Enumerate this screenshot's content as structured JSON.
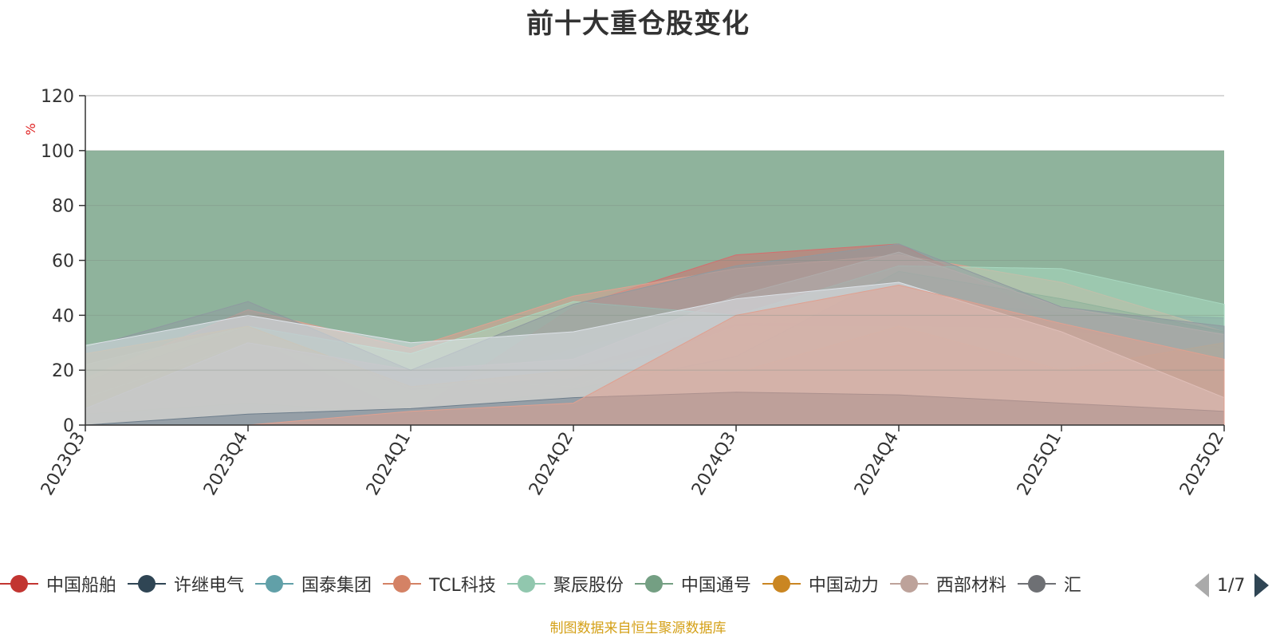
{
  "title": "前十大重仓股变化",
  "source": "制图数据来自恒生聚源数据库",
  "pager": {
    "text": "1/7",
    "prev_icon": "triangle-left-icon",
    "next_icon": "triangle-right-icon"
  },
  "legend": [
    {
      "name": "中国船舶",
      "color": "#c23531"
    },
    {
      "name": "许继电气",
      "color": "#2f4554"
    },
    {
      "name": "国泰集团",
      "color": "#61a0a8"
    },
    {
      "name": "TCL科技",
      "color": "#d48265"
    },
    {
      "name": "聚辰股份",
      "color": "#91c7ae"
    },
    {
      "name": "中国通号",
      "color": "#749f83"
    },
    {
      "name": "中国动力",
      "color": "#ca8622"
    },
    {
      "name": "西部材料",
      "color": "#bda29a"
    },
    {
      "name": "汇",
      "color": "#6e7074"
    }
  ],
  "chart_data": {
    "type": "area",
    "stacked": true,
    "title": "前十大重仓股变化",
    "ylabel": "%",
    "ylim": [
      0,
      120
    ],
    "yticks": [
      0,
      20,
      40,
      60,
      80,
      100,
      120
    ],
    "categories": [
      "2023Q3",
      "2023Q4",
      "2024Q1",
      "2024Q2",
      "2024Q3",
      "2024Q4",
      "2025Q1",
      "2025Q2"
    ],
    "background_band": {
      "from": 0,
      "to": 100,
      "color": "#8fb39c"
    },
    "series": [
      {
        "color": "#d46e6e",
        "values": [
          0,
          0,
          0,
          6.5,
          7,
          10.5,
          7.5,
          5
        ]
      },
      {
        "color": "#8a9db3",
        "values": [
          0,
          0,
          3,
          1.5,
          5,
          0,
          0,
          0
        ]
      },
      {
        "color": "#b6c8ac",
        "values": [
          0,
          3,
          2,
          0,
          7,
          0,
          0,
          0
        ]
      },
      {
        "color": "#8fb39c",
        "values": [
          0,
          0,
          0,
          0,
          0,
          4,
          4.5,
          0.5
        ]
      },
      {
        "color": "#6e7e8c",
        "values": [
          3,
          7,
          0,
          6,
          6,
          0,
          0,
          0
        ]
      },
      {
        "color": "#e0b060",
        "values": [
          0,
          3.5,
          2,
          3,
          0,
          9,
          8,
          0
        ]
      },
      {
        "color": "#e0a090",
        "values": [
          0,
          6,
          3,
          0,
          0,
          4,
          0,
          0
        ]
      },
      {
        "color": "#8fb39c",
        "values": [
          0,
          3,
          0,
          0,
          0,
          0,
          0,
          0
        ]
      },
      {
        "color": "#a0a0a0",
        "values": [
          3,
          0,
          0,
          4,
          6,
          0,
          0,
          0
        ]
      },
      {
        "color": "#6e7e8c",
        "values": [
          2,
          0,
          0,
          0,
          6,
          10,
          9,
          0
        ]
      },
      {
        "color": "#d8c0b8",
        "values": [
          2,
          7,
          0,
          3,
          5,
          0,
          0,
          0
        ]
      },
      {
        "color": "#9aa6b0",
        "values": [
          2,
          2,
          1,
          4,
          0,
          0,
          0,
          4
        ]
      },
      {
        "color": "#e0b060",
        "values": [
          0,
          0,
          0,
          0,
          0,
          0,
          0,
          0
        ]
      },
      {
        "color": "#6e7e8c",
        "values": [
          0,
          0,
          0,
          0,
          0,
          0,
          0,
          0
        ]
      },
      {
        "color": "#a8d8c0",
        "values": [
          0,
          0,
          0,
          0,
          0,
          0,
          0,
          0
        ]
      }
    ],
    "overlay_series": [
      {
        "name": "中国船舶",
        "color": "#d46e6e",
        "values": [
          13,
          32,
          4,
          43,
          62,
          66,
          38,
          28
        ]
      },
      {
        "name": "许继电气",
        "color": "#6e7e8c",
        "values": [
          16,
          36,
          13,
          17,
          35,
          46,
          41,
          39
        ]
      },
      {
        "name": "国泰集团",
        "color": "#8fb8c0",
        "values": [
          10,
          30,
          17,
          14,
          36,
          36,
          35,
          25
        ]
      },
      {
        "name": "TCL科技",
        "color": "#e0a090",
        "values": [
          17,
          42,
          28,
          47,
          57,
          62,
          52,
          34
        ]
      },
      {
        "name": "聚辰股份",
        "color": "#a8d8c0",
        "values": [
          22,
          36,
          26,
          45,
          40,
          58,
          57,
          44
        ]
      },
      {
        "name": "中国通号",
        "color": "#8fb39c",
        "values": [
          4,
          8,
          4,
          13,
          25,
          56,
          46,
          34
        ]
      },
      {
        "name": "中国动力",
        "color": "#e0b060",
        "values": [
          26,
          36,
          14,
          20,
          19,
          36,
          20,
          30
        ]
      },
      {
        "name": "西部材料",
        "color": "#d8c0b8",
        "values": [
          6,
          30,
          20,
          24,
          47,
          63,
          43,
          33
        ]
      },
      {
        "name": "汇",
        "color": "#8f9aa0",
        "values": [
          28,
          45,
          20,
          44,
          58,
          66,
          43,
          36
        ]
      },
      {
        "name": "",
        "color": "#dde2e8",
        "values": [
          29,
          40,
          30,
          34,
          46,
          52,
          34,
          10
        ]
      },
      {
        "name": "",
        "color": "#6e7e8c",
        "values": [
          0,
          4,
          6,
          10,
          12,
          11,
          8,
          5
        ]
      },
      {
        "name": "",
        "color": "#e0a090",
        "values": [
          0,
          0,
          5,
          8,
          40,
          51,
          37,
          24
        ]
      }
    ]
  }
}
